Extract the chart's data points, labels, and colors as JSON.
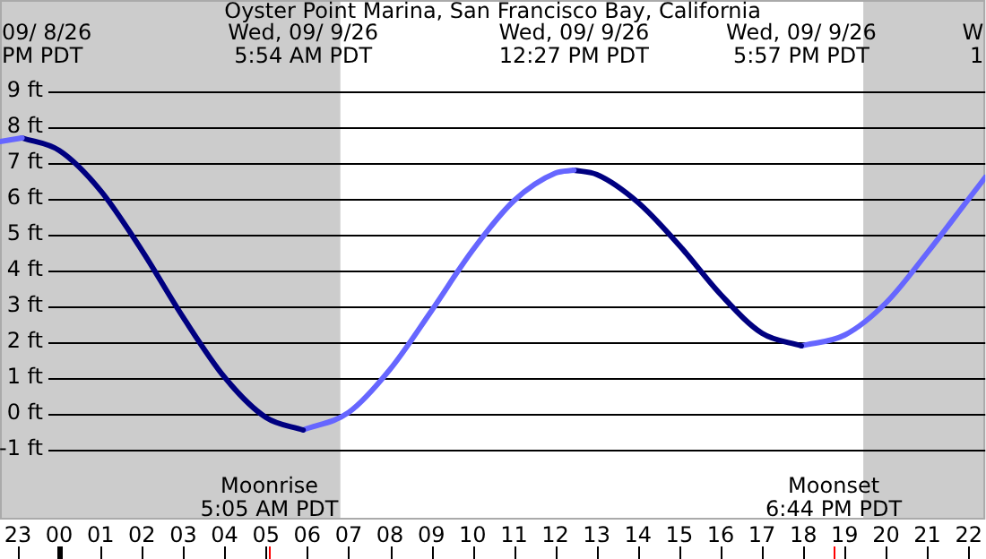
{
  "chart_data": {
    "type": "line",
    "title": "Oyster Point Marina, San Francisco Bay, California",
    "xlim": [
      "--09-08T22:34",
      "--09-09T22:24"
    ],
    "ylim": [
      -2.95,
      11.55
    ],
    "xticks": [
      {
        "value": "--09-08T23:00",
        "label": "23"
      },
      {
        "value": "--09-09T00:00",
        "label": "00"
      },
      {
        "value": "--09-09T01:00",
        "label": "01"
      },
      {
        "value": "--09-09T02:00",
        "label": "02"
      },
      {
        "value": "--09-09T03:00",
        "label": "03"
      },
      {
        "value": "--09-09T04:00",
        "label": "04"
      },
      {
        "value": "--09-09T05:00",
        "label": "05"
      },
      {
        "value": "--09-09T06:00",
        "label": "06"
      },
      {
        "value": "--09-09T07:00",
        "label": "07"
      },
      {
        "value": "--09-09T08:00",
        "label": "08"
      },
      {
        "value": "--09-09T09:00",
        "label": "09"
      },
      {
        "value": "--09-09T10:00",
        "label": "10"
      },
      {
        "value": "--09-09T11:00",
        "label": "11"
      },
      {
        "value": "--09-09T12:00",
        "label": "12"
      },
      {
        "value": "--09-09T13:00",
        "label": "13"
      },
      {
        "value": "--09-09T14:00",
        "label": "14"
      },
      {
        "value": "--09-09T15:00",
        "label": "15"
      },
      {
        "value": "--09-09T16:00",
        "label": "16"
      },
      {
        "value": "--09-09T17:00",
        "label": "17"
      },
      {
        "value": "--09-09T18:00",
        "label": "18"
      },
      {
        "value": "--09-09T19:00",
        "label": "19"
      },
      {
        "value": "--09-09T20:00",
        "label": "20"
      },
      {
        "value": "--09-09T21:00",
        "label": "21"
      },
      {
        "value": "--09-09T22:00",
        "label": "22"
      }
    ],
    "yticks": [
      {
        "value": -1,
        "label": "-1 ft"
      },
      {
        "value": 0,
        "label": "0 ft"
      },
      {
        "value": 1,
        "label": "1 ft"
      },
      {
        "value": 2,
        "label": "2 ft"
      },
      {
        "value": 3,
        "label": "3 ft"
      },
      {
        "value": 4,
        "label": "4 ft"
      },
      {
        "value": 5,
        "label": "5 ft"
      },
      {
        "value": 6,
        "label": "6 ft"
      },
      {
        "value": 7,
        "label": "7 ft"
      },
      {
        "value": 8,
        "label": "8 ft"
      },
      {
        "value": 9,
        "label": "9 ft"
      }
    ],
    "grid": "y",
    "legend": false,
    "marker": "none",
    "line_style": "solid",
    "series": [
      {
        "color": "#6666ff",
        "x": [
          "--09-08T22:34",
          "--09-08T23:06"
        ],
        "values": [
          7.6,
          7.7
        ]
      },
      {
        "color": "#000080",
        "x": [
          "--09-08T23:06",
          "--09-09T00:00",
          "--09-09T01:00",
          "--09-09T02:00",
          "--09-09T03:00",
          "--09-09T04:00",
          "--09-09T05:00",
          "--09-09T05:54"
        ],
        "values": [
          7.7,
          7.35,
          6.23,
          4.56,
          2.69,
          1.02,
          -0.1,
          -0.45
        ]
      },
      {
        "color": "#6666ff",
        "x": [
          "--09-09T05:54",
          "--09-09T07:00",
          "--09-09T08:00",
          "--09-09T09:00",
          "--09-09T10:00",
          "--09-09T11:00",
          "--09-09T12:00",
          "--09-09T12:27"
        ],
        "values": [
          -0.45,
          0.04,
          1.24,
          2.87,
          4.57,
          5.95,
          6.72,
          6.8
        ]
      },
      {
        "color": "#000080",
        "x": [
          "--09-09T12:27",
          "--09-09T13:00",
          "--09-09T14:00",
          "--09-09T15:00",
          "--09-09T16:00",
          "--09-09T17:00",
          "--09-09T17:57"
        ],
        "values": [
          6.8,
          6.68,
          5.9,
          4.7,
          3.33,
          2.25,
          1.9
        ]
      },
      {
        "color": "#6666ff",
        "x": [
          "--09-09T17:57",
          "--09-09T19:00",
          "--09-09T20:00",
          "--09-09T21:00",
          "--09-09T22:00",
          "--09-09T22:24"
        ],
        "values": [
          1.9,
          2.2,
          3.1,
          4.5,
          6.0,
          6.6
        ]
      }
    ],
    "bands": [
      {
        "axis": "x",
        "from": "--09-08T22:34",
        "to": "--09-09T06:48",
        "color": "#cccccc"
      },
      {
        "axis": "x",
        "from": "--09-09T19:27",
        "to": "--09-09T22:24",
        "color": "#cccccc"
      }
    ],
    "ref_lines": [
      {
        "axis": "x",
        "value": "--09-09T05:05",
        "label": "Moonrise\n5:05 AM PDT",
        "color": "#ff0000"
      },
      {
        "axis": "x",
        "value": "--09-09T18:44",
        "label": "Moonset\n6:44 PM PDT",
        "color": "#ff0000"
      }
    ],
    "annotations": [
      "09/ 8/26\nPM PDT",
      "Wed, 09/ 9/26\n5:54 AM PDT",
      "Wed, 09/ 9/26\n12:27 PM PDT",
      "Wed, 09/ 9/26\n5:57 PM PDT",
      "W\n1"
    ]
  }
}
